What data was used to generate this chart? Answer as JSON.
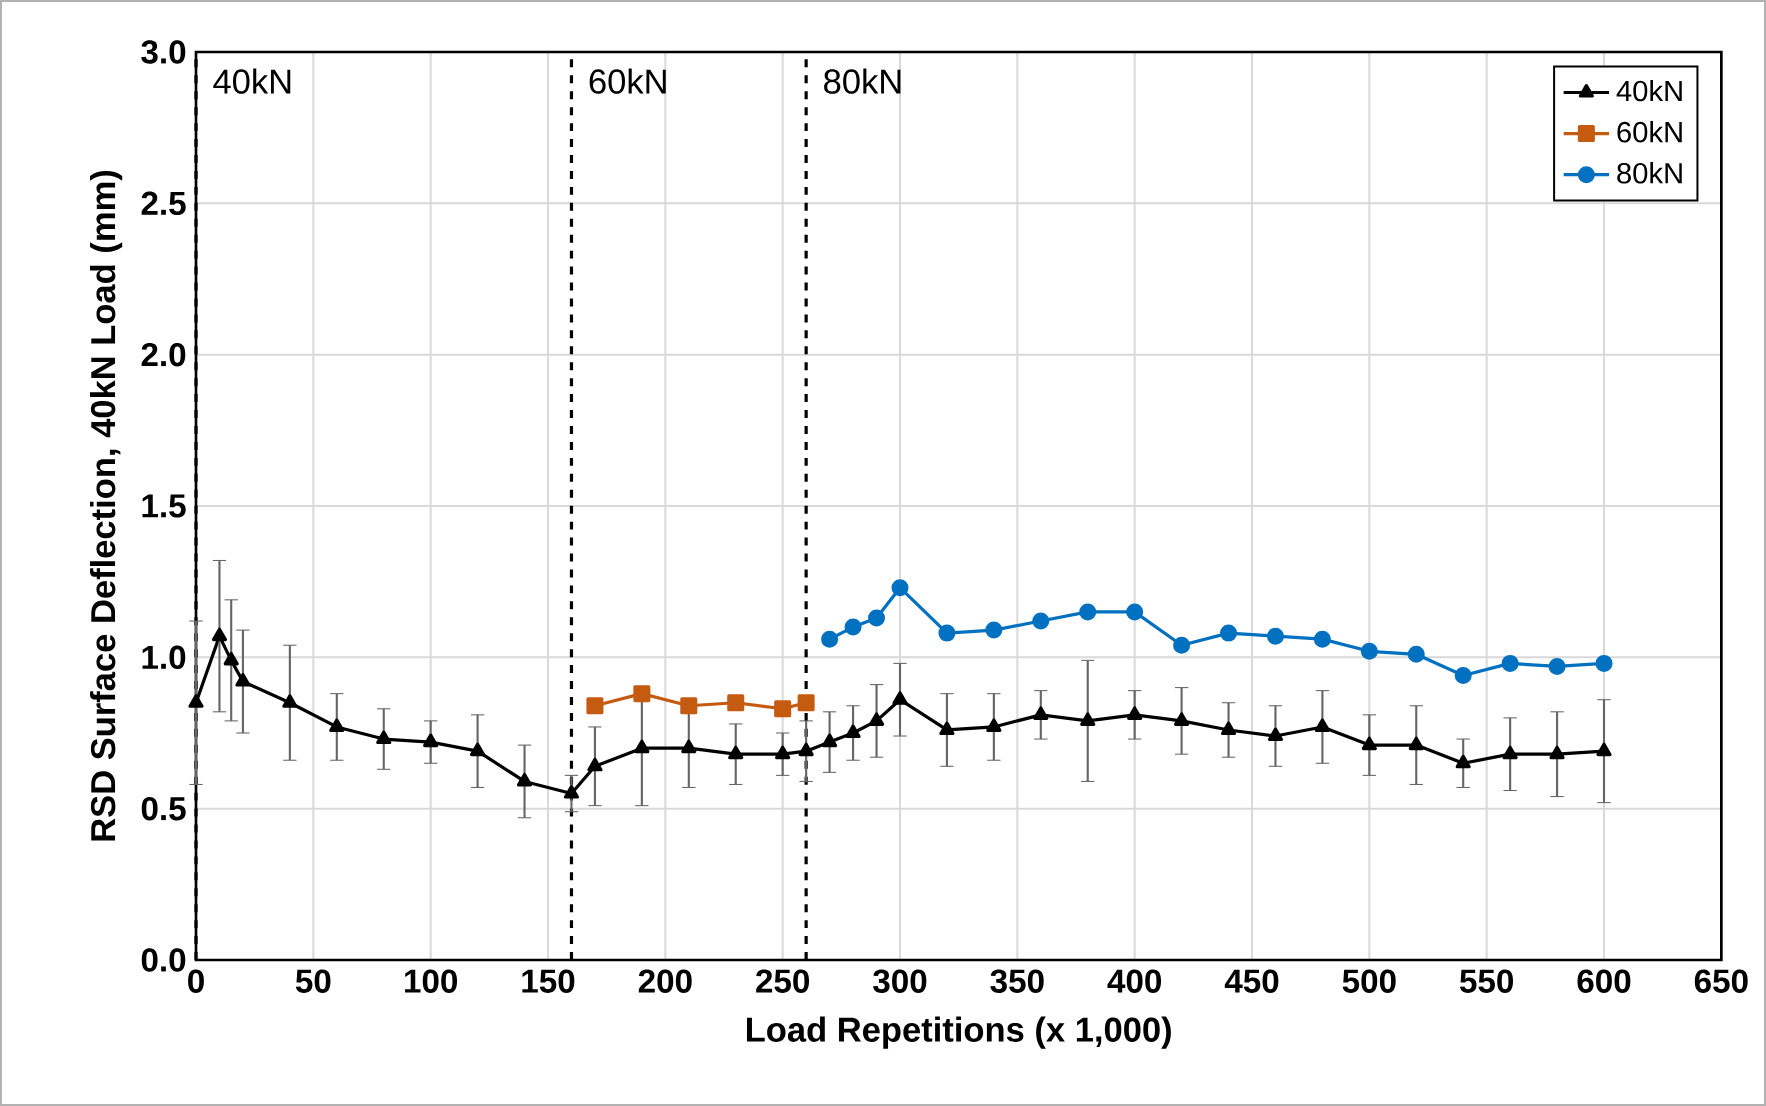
{
  "chart_data": {
    "type": "line",
    "xlabel": "Load Repetitions (x 1,000)",
    "ylabel": "RSD Surface Deflection, 40kN Load (mm)",
    "xlim": [
      0,
      650
    ],
    "xticks": [
      0,
      50,
      100,
      150,
      200,
      250,
      300,
      350,
      400,
      450,
      500,
      550,
      600,
      650
    ],
    "ylim": [
      0,
      3.0
    ],
    "yticks": [
      {
        "value": 0,
        "label": "0.0"
      },
      {
        "value": 0.5,
        "label": "0.5"
      },
      {
        "value": 1,
        "label": "1.0"
      },
      {
        "value": 1.5,
        "label": "1.5"
      },
      {
        "value": 2,
        "label": "2.0"
      },
      {
        "value": 2.5,
        "label": "2.5"
      },
      {
        "value": 3,
        "label": "3.0"
      }
    ],
    "grid": true,
    "legend": "top right",
    "ref_lines": [
      {
        "axis": "x",
        "value": 0,
        "label": "40kN",
        "color": "#000000",
        "line_style": "dashed"
      },
      {
        "axis": "x",
        "value": 160,
        "label": "60kN",
        "color": "#000000",
        "line_style": "dashed"
      },
      {
        "axis": "x",
        "value": 260,
        "label": "80kN",
        "color": "#000000",
        "line_style": "dashed"
      }
    ],
    "series": [
      {
        "name": "40kN",
        "color": "#000000",
        "marker": "triangle",
        "x": [
          0,
          10,
          15,
          20,
          40,
          60,
          80,
          100,
          120,
          140,
          160,
          170,
          190,
          210,
          230,
          250,
          260,
          270,
          280,
          290,
          300,
          320,
          340,
          360,
          380,
          400,
          420,
          440,
          460,
          480,
          500,
          520,
          540,
          560,
          580,
          600
        ],
        "values": [
          0.85,
          1.07,
          0.99,
          0.92,
          0.85,
          0.77,
          0.73,
          0.72,
          0.69,
          0.59,
          0.55,
          0.64,
          0.7,
          0.7,
          0.68,
          0.68,
          0.69,
          0.72,
          0.75,
          0.79,
          0.86,
          0.76,
          0.77,
          0.81,
          0.79,
          0.81,
          0.79,
          0.76,
          0.74,
          0.77,
          0.71,
          0.71,
          0.65,
          0.68,
          0.68,
          0.69
        ],
        "errors": [
          0.27,
          0.25,
          0.2,
          0.17,
          0.19,
          0.11,
          0.1,
          0.07,
          0.12,
          0.12,
          0.06,
          0.13,
          0.19,
          0.13,
          0.1,
          0.07,
          0.1,
          0.1,
          0.09,
          0.12,
          0.12,
          0.12,
          0.11,
          0.08,
          0.2,
          0.08,
          0.11,
          0.09,
          0.1,
          0.12,
          0.1,
          0.13,
          0.08,
          0.12,
          0.14,
          0.17
        ]
      },
      {
        "name": "60kN",
        "color": "#c55a11",
        "marker": "square",
        "x": [
          170,
          190,
          210,
          230,
          250,
          260
        ],
        "values": [
          0.84,
          0.88,
          0.84,
          0.85,
          0.83,
          0.85
        ]
      },
      {
        "name": "80kN",
        "color": "#0070c0",
        "marker": "circle",
        "x": [
          270,
          280,
          290,
          300,
          320,
          340,
          360,
          380,
          400,
          420,
          440,
          460,
          480,
          500,
          520,
          540,
          560,
          580,
          600
        ],
        "values": [
          1.06,
          1.1,
          1.13,
          1.23,
          1.08,
          1.09,
          1.12,
          1.15,
          1.15,
          1.04,
          1.08,
          1.07,
          1.06,
          1.02,
          1.01,
          0.94,
          0.98,
          0.97,
          0.98
        ]
      }
    ]
  }
}
